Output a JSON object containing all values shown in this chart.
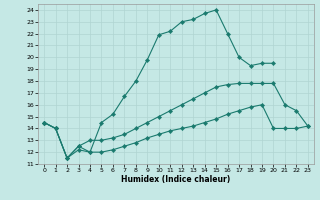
{
  "xlabel": "Humidex (Indice chaleur)",
  "background_color": "#c5e8e5",
  "grid_color": "#b0d5d2",
  "line_color": "#1a7a6e",
  "xlim": [
    -0.5,
    23.5
  ],
  "ylim": [
    11,
    24.5
  ],
  "xticks": [
    0,
    1,
    2,
    3,
    4,
    5,
    6,
    7,
    8,
    9,
    10,
    11,
    12,
    13,
    14,
    15,
    16,
    17,
    18,
    19,
    20,
    21,
    22,
    23
  ],
  "yticks": [
    11,
    12,
    13,
    14,
    15,
    16,
    17,
    18,
    19,
    20,
    21,
    22,
    23,
    24
  ],
  "line1_x": [
    0,
    1,
    2,
    3,
    4,
    5,
    6,
    7,
    8,
    9,
    10,
    11,
    12,
    13,
    14,
    15,
    16,
    17,
    18,
    19,
    20
  ],
  "line1_y": [
    14.5,
    14.0,
    11.5,
    12.5,
    12.0,
    14.5,
    15.2,
    16.7,
    18.0,
    19.8,
    21.9,
    22.2,
    23.0,
    23.2,
    23.7,
    24.0,
    22.0,
    20.0,
    19.3,
    19.5,
    19.5
  ],
  "line2_x": [
    0,
    1,
    2,
    3,
    4,
    5,
    6,
    7,
    8,
    9,
    10,
    11,
    12,
    13,
    14,
    15,
    16,
    17,
    18,
    19,
    20,
    21,
    22,
    23
  ],
  "line2_y": [
    14.5,
    14.0,
    11.5,
    12.5,
    13.0,
    13.0,
    13.2,
    13.5,
    14.0,
    14.5,
    15.0,
    15.5,
    16.0,
    16.5,
    17.0,
    17.5,
    17.7,
    17.8,
    17.8,
    17.8,
    17.8,
    16.0,
    15.5,
    14.2
  ],
  "line3_x": [
    0,
    1,
    2,
    3,
    4,
    5,
    6,
    7,
    8,
    9,
    10,
    11,
    12,
    13,
    14,
    15,
    16,
    17,
    18,
    19,
    20,
    21,
    22,
    23
  ],
  "line3_y": [
    14.5,
    14.0,
    11.5,
    12.2,
    12.0,
    12.0,
    12.2,
    12.5,
    12.8,
    13.2,
    13.5,
    13.8,
    14.0,
    14.2,
    14.5,
    14.8,
    15.2,
    15.5,
    15.8,
    16.0,
    14.0,
    14.0,
    14.0,
    14.2
  ]
}
